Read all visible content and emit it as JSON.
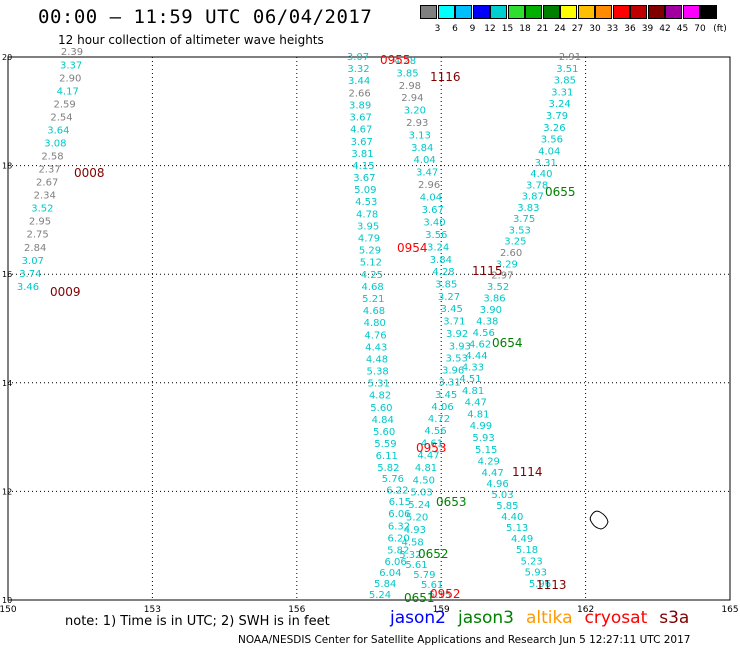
{
  "header": {
    "title": "00:00 – 11:59 UTC 06/04/2017",
    "subtitle": "12 hour collection of altimeter wave heights"
  },
  "legend": {
    "colors": [
      "#7f7f7f",
      "#00ffff",
      "#00bfff",
      "#0000ff",
      "#00cfcf",
      "#2fdf2f",
      "#00af00",
      "#008000",
      "#ffff00",
      "#ffbf00",
      "#ff8c00",
      "#ff0000",
      "#bf0000",
      "#800000",
      "#a000a0",
      "#ff00ff",
      "#000000"
    ],
    "labels": [
      "3",
      "6",
      "9",
      "12",
      "15",
      "18",
      "21",
      "24",
      "27",
      "30",
      "33",
      "36",
      "39",
      "42",
      "45",
      "70"
    ],
    "unit": "(ft)"
  },
  "map": {
    "lon_ticks": [
      "150",
      "153",
      "156",
      "159",
      "162",
      "165"
    ],
    "lat_ticks": [
      "20",
      "18",
      "16",
      "14",
      "12",
      "10"
    ],
    "lon_range": [
      150,
      165
    ],
    "lat_range": [
      10,
      20
    ]
  },
  "tracks": [
    {
      "id": "t1",
      "points": [
        {
          "v": "2.39",
          "c": "#808080"
        },
        {
          "v": "3.37",
          "c": "#00c8c8"
        },
        {
          "v": "2.90",
          "c": "#808080"
        },
        {
          "v": "4.17",
          "c": "#00c8c8"
        },
        {
          "v": "2.59",
          "c": "#808080"
        },
        {
          "v": "2.54",
          "c": "#808080"
        },
        {
          "v": "3.64",
          "c": "#00c8c8"
        },
        {
          "v": "3.08",
          "c": "#00c8c8"
        },
        {
          "v": "2.58",
          "c": "#808080"
        },
        {
          "v": "2.37",
          "c": "#808080"
        },
        {
          "v": "2.67",
          "c": "#808080"
        },
        {
          "v": "2.34",
          "c": "#808080"
        },
        {
          "v": "3.52",
          "c": "#00c8c8"
        },
        {
          "v": "2.95",
          "c": "#808080"
        },
        {
          "v": "2.75",
          "c": "#808080"
        },
        {
          "v": "2.84",
          "c": "#808080"
        },
        {
          "v": "3.07",
          "c": "#00c8c8"
        },
        {
          "v": "3.74",
          "c": "#00c8c8"
        },
        {
          "v": "3.46",
          "c": "#00c8c8"
        }
      ]
    },
    {
      "id": "t2",
      "points": [
        {
          "v": "3.07",
          "c": "#00c8c8"
        },
        {
          "v": "3.32",
          "c": "#00c8c8"
        },
        {
          "v": "3.44",
          "c": "#00c8c8"
        },
        {
          "v": "2.66",
          "c": "#808080"
        },
        {
          "v": "3.89",
          "c": "#00c8c8"
        },
        {
          "v": "3.67",
          "c": "#00c8c8"
        },
        {
          "v": "4.67",
          "c": "#00c8c8"
        },
        {
          "v": "3.67",
          "c": "#00c8c8"
        },
        {
          "v": "3.81",
          "c": "#00c8c8"
        },
        {
          "v": "4.15",
          "c": "#00c8c8"
        },
        {
          "v": "3.67",
          "c": "#00c8c8"
        },
        {
          "v": "5.09",
          "c": "#00c8c8"
        },
        {
          "v": "4.53",
          "c": "#00c8c8"
        },
        {
          "v": "4.78",
          "c": "#00c8c8"
        },
        {
          "v": "3.95",
          "c": "#00c8c8"
        },
        {
          "v": "4.79",
          "c": "#00c8c8"
        },
        {
          "v": "5.29",
          "c": "#00c8c8"
        },
        {
          "v": "5.12",
          "c": "#00c8c8"
        },
        {
          "v": "4.25",
          "c": "#00c8c8"
        },
        {
          "v": "4.68",
          "c": "#00c8c8"
        },
        {
          "v": "5.21",
          "c": "#00c8c8"
        },
        {
          "v": "4.68",
          "c": "#00c8c8"
        },
        {
          "v": "4.80",
          "c": "#00c8c8"
        },
        {
          "v": "4.76",
          "c": "#00c8c8"
        },
        {
          "v": "4.43",
          "c": "#00c8c8"
        },
        {
          "v": "4.48",
          "c": "#00c8c8"
        },
        {
          "v": "5.38",
          "c": "#00c8c8"
        },
        {
          "v": "5.31",
          "c": "#00c8c8"
        },
        {
          "v": "4.82",
          "c": "#00c8c8"
        },
        {
          "v": "5.60",
          "c": "#00c8c8"
        },
        {
          "v": "4.84",
          "c": "#00c8c8"
        },
        {
          "v": "5.60",
          "c": "#00c8c8"
        },
        {
          "v": "5.59",
          "c": "#00c8c8"
        },
        {
          "v": "6.11",
          "c": "#00c8c8"
        },
        {
          "v": "5.82",
          "c": "#00c8c8"
        },
        {
          "v": "5.76",
          "c": "#00c8c8"
        },
        {
          "v": "6.22",
          "c": "#00c8c8"
        },
        {
          "v": "6.15",
          "c": "#00c8c8"
        },
        {
          "v": "6.06",
          "c": "#00c8c8"
        },
        {
          "v": "6.32",
          "c": "#00c8c8"
        },
        {
          "v": "6.20",
          "c": "#00c8c8"
        },
        {
          "v": "5.82",
          "c": "#00c8c8"
        },
        {
          "v": "6.06",
          "c": "#00c8c8"
        },
        {
          "v": "6.04",
          "c": "#00c8c8"
        },
        {
          "v": "5.84",
          "c": "#00c8c8"
        },
        {
          "v": "5.24",
          "c": "#00c8c8"
        }
      ]
    },
    {
      "id": "t3",
      "points": [
        {
          "v": "4.28",
          "c": "#00c8c8"
        },
        {
          "v": "3.85",
          "c": "#00c8c8"
        },
        {
          "v": "2.98",
          "c": "#808080"
        },
        {
          "v": "2.94",
          "c": "#808080"
        },
        {
          "v": "3.20",
          "c": "#00c8c8"
        },
        {
          "v": "2.93",
          "c": "#808080"
        },
        {
          "v": "3.13",
          "c": "#00c8c8"
        },
        {
          "v": "3.84",
          "c": "#00c8c8"
        },
        {
          "v": "4.04",
          "c": "#00c8c8"
        },
        {
          "v": "3.47",
          "c": "#00c8c8"
        },
        {
          "v": "2.96",
          "c": "#808080"
        },
        {
          "v": "4.04",
          "c": "#00c8c8"
        },
        {
          "v": "3.67",
          "c": "#00c8c8"
        },
        {
          "v": "3.40",
          "c": "#00c8c8"
        },
        {
          "v": "3.56",
          "c": "#00c8c8"
        },
        {
          "v": "3.24",
          "c": "#00c8c8"
        },
        {
          "v": "3.84",
          "c": "#00c8c8"
        },
        {
          "v": "4.28",
          "c": "#00c8c8"
        },
        {
          "v": "3.85",
          "c": "#00c8c8"
        },
        {
          "v": "3.27",
          "c": "#00c8c8"
        },
        {
          "v": "3.45",
          "c": "#00c8c8"
        },
        {
          "v": "3.71",
          "c": "#00c8c8"
        },
        {
          "v": "3.92",
          "c": "#00c8c8"
        },
        {
          "v": "3.93",
          "c": "#00c8c8"
        },
        {
          "v": "3.53",
          "c": "#00c8c8"
        },
        {
          "v": "3.96",
          "c": "#00c8c8"
        },
        {
          "v": "3.31",
          "c": "#00c8c8"
        },
        {
          "v": "3.45",
          "c": "#00c8c8"
        },
        {
          "v": "4.06",
          "c": "#00c8c8"
        },
        {
          "v": "4.72",
          "c": "#00c8c8"
        },
        {
          "v": "4.56",
          "c": "#00c8c8"
        },
        {
          "v": "4.61",
          "c": "#00c8c8"
        },
        {
          "v": "4.47",
          "c": "#00c8c8"
        },
        {
          "v": "4.81",
          "c": "#00c8c8"
        },
        {
          "v": "4.50",
          "c": "#00c8c8"
        },
        {
          "v": "5.03",
          "c": "#00c8c8"
        },
        {
          "v": "5.24",
          "c": "#00c8c8"
        },
        {
          "v": "5.20",
          "c": "#00c8c8"
        },
        {
          "v": "4.93",
          "c": "#00c8c8"
        },
        {
          "v": "4.58",
          "c": "#00c8c8"
        },
        {
          "v": "5.32",
          "c": "#00c8c8"
        },
        {
          "v": "5.61",
          "c": "#00c8c8"
        },
        {
          "v": "5.79",
          "c": "#00c8c8"
        },
        {
          "v": "5.61",
          "c": "#00c8c8"
        },
        {
          "v": "5.15",
          "c": "#00c8c8"
        }
      ]
    },
    {
      "id": "t4",
      "points": [
        {
          "v": "2.91",
          "c": "#808080"
        },
        {
          "v": "3.51",
          "c": "#00c8c8"
        },
        {
          "v": "3.85",
          "c": "#00c8c8"
        },
        {
          "v": "3.31",
          "c": "#00c8c8"
        },
        {
          "v": "3.24",
          "c": "#00c8c8"
        },
        {
          "v": "3.79",
          "c": "#00c8c8"
        },
        {
          "v": "3.26",
          "c": "#00c8c8"
        },
        {
          "v": "3.56",
          "c": "#00c8c8"
        },
        {
          "v": "4.04",
          "c": "#00c8c8"
        },
        {
          "v": "3.31",
          "c": "#00c8c8"
        },
        {
          "v": "4.40",
          "c": "#00c8c8"
        },
        {
          "v": "3.78",
          "c": "#00c8c8"
        },
        {
          "v": "3.87",
          "c": "#00c8c8"
        },
        {
          "v": "3.83",
          "c": "#00c8c8"
        },
        {
          "v": "3.75",
          "c": "#00c8c8"
        },
        {
          "v": "3.53",
          "c": "#00c8c8"
        },
        {
          "v": "3.25",
          "c": "#00c8c8"
        },
        {
          "v": "2.60",
          "c": "#808080"
        },
        {
          "v": "3.29",
          "c": "#00c8c8"
        },
        {
          "v": "2.97",
          "c": "#808080"
        },
        {
          "v": "3.52",
          "c": "#00c8c8"
        },
        {
          "v": "3.86",
          "c": "#00c8c8"
        },
        {
          "v": "3.90",
          "c": "#00c8c8"
        },
        {
          "v": "4.38",
          "c": "#00c8c8"
        },
        {
          "v": "4.56",
          "c": "#00c8c8"
        },
        {
          "v": "4.62",
          "c": "#00c8c8"
        },
        {
          "v": "4.44",
          "c": "#00c8c8"
        },
        {
          "v": "4.33",
          "c": "#00c8c8"
        },
        {
          "v": "4.51",
          "c": "#00c8c8"
        },
        {
          "v": "4.81",
          "c": "#00c8c8"
        },
        {
          "v": "4.47",
          "c": "#00c8c8"
        },
        {
          "v": "4.81",
          "c": "#00c8c8"
        },
        {
          "v": "4.99",
          "c": "#00c8c8"
        },
        {
          "v": "5.93",
          "c": "#00c8c8"
        },
        {
          "v": "5.15",
          "c": "#00c8c8"
        },
        {
          "v": "4.29",
          "c": "#00c8c8"
        },
        {
          "v": "4.47",
          "c": "#00c8c8"
        },
        {
          "v": "4.96",
          "c": "#00c8c8"
        },
        {
          "v": "5.03",
          "c": "#00c8c8"
        },
        {
          "v": "5.85",
          "c": "#00c8c8"
        },
        {
          "v": "4.40",
          "c": "#00c8c8"
        },
        {
          "v": "5.13",
          "c": "#00c8c8"
        },
        {
          "v": "4.49",
          "c": "#00c8c8"
        },
        {
          "v": "5.18",
          "c": "#00c8c8"
        },
        {
          "v": "5.23",
          "c": "#00c8c8"
        },
        {
          "v": "5.93",
          "c": "#00c8c8"
        },
        {
          "v": "5.96",
          "c": "#00c8c8"
        }
      ]
    }
  ],
  "time_labels": [
    {
      "text": "0008",
      "color": "#800000"
    },
    {
      "text": "0009",
      "color": "#800000"
    },
    {
      "text": "0955",
      "color": "#ff0000"
    },
    {
      "text": "1116",
      "color": "#800000"
    },
    {
      "text": "0954",
      "color": "#ff0000"
    },
    {
      "text": "1115",
      "color": "#800000"
    },
    {
      "text": "0655",
      "color": "#008000"
    },
    {
      "text": "0654",
      "color": "#008000"
    },
    {
      "text": "0953",
      "color": "#ff0000"
    },
    {
      "text": "1114",
      "color": "#800000"
    },
    {
      "text": "0653",
      "color": "#008000"
    },
    {
      "text": "0652",
      "color": "#008000"
    },
    {
      "text": "0651",
      "color": "#008000"
    },
    {
      "text": "0952",
      "color": "#ff0000"
    },
    {
      "text": "1113",
      "color": "#800000"
    }
  ],
  "footer": {
    "note": "note:  1) Time is in UTC;  2) SWH is in feet",
    "satellites": [
      {
        "name": "jason2",
        "color": "#0000ff"
      },
      {
        "name": "jason3",
        "color": "#008000"
      },
      {
        "name": "altika",
        "color": "#ff9900"
      },
      {
        "name": "cryosat",
        "color": "#ff0000"
      },
      {
        "name": "s3a",
        "color": "#800000"
      }
    ],
    "credit": "NOAA/NESDIS Center for Satellite Applications and Research   Jun  5 12:27:11 UTC 2017"
  }
}
